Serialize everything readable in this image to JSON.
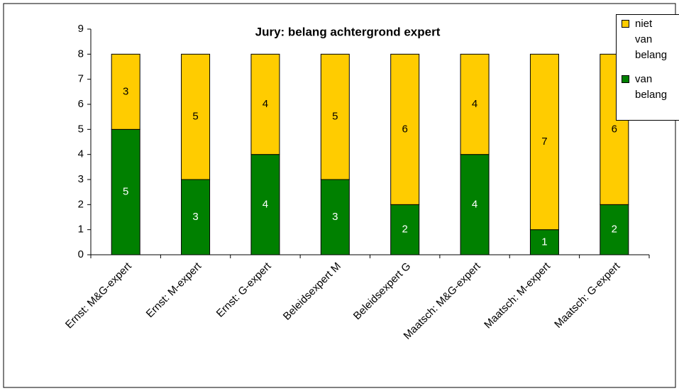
{
  "chart_data": {
    "type": "stacked_bar",
    "title": "Jury: belang achtergrond expert",
    "categories": [
      "Ernst: M&G-expert",
      "Ernst: M-expert",
      "Ernst: G-expert",
      "Beleidsexpert M",
      "Beleidsexpert G",
      "Maatsch: M&G-expert",
      "Maatsch: M-expert",
      "Maatsch: G-expert"
    ],
    "series": [
      {
        "name": "van belang",
        "color": "#008000",
        "values": [
          5,
          3,
          4,
          3,
          2,
          4,
          1,
          2
        ]
      },
      {
        "name": "niet van belang",
        "color": "#ffcc00",
        "values": [
          3,
          5,
          4,
          5,
          6,
          4,
          7,
          6
        ]
      }
    ],
    "ylim": [
      0,
      9
    ],
    "yticks": [
      0,
      1,
      2,
      3,
      4,
      5,
      6,
      7,
      8,
      9
    ],
    "grid": false,
    "legend": "top-right"
  }
}
